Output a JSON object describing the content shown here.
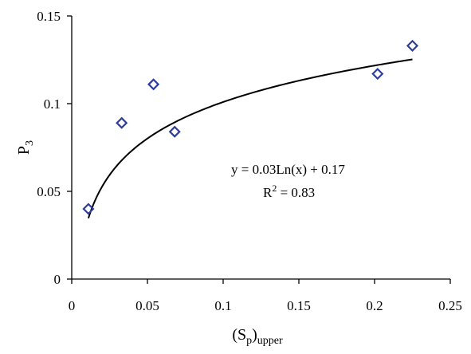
{
  "chart_data": {
    "type": "scatter",
    "xlabel": {
      "main": "(S",
      "sub1": "p",
      "mid": ")",
      "sub2": "upper"
    },
    "ylabel": {
      "main": "P",
      "sub": "3"
    },
    "xlim": [
      0,
      0.25
    ],
    "ylim": [
      0,
      0.15
    ],
    "x_ticks": [
      {
        "value": 0,
        "label": "0"
      },
      {
        "value": 0.05,
        "label": "0.05"
      },
      {
        "value": 0.1,
        "label": "0.1"
      },
      {
        "value": 0.15,
        "label": "0.15"
      },
      {
        "value": 0.2,
        "label": "0.2"
      },
      {
        "value": 0.25,
        "label": "0.25"
      }
    ],
    "y_ticks": [
      {
        "value": 0,
        "label": "0"
      },
      {
        "value": 0.05,
        "label": "0.05"
      },
      {
        "value": 0.1,
        "label": "0.1"
      },
      {
        "value": 0.15,
        "label": "0.15"
      }
    ],
    "grid": false,
    "legend": "none",
    "series": [
      {
        "marker": "diamond-open",
        "color": "#2E3D9A",
        "points": [
          {
            "x": 0.011,
            "y": 0.04
          },
          {
            "x": 0.033,
            "y": 0.089
          },
          {
            "x": 0.054,
            "y": 0.111
          },
          {
            "x": 0.068,
            "y": 0.084
          },
          {
            "x": 0.202,
            "y": 0.117
          },
          {
            "x": 0.225,
            "y": 0.133
          }
        ]
      }
    ],
    "trendline": {
      "kind": "logarithmic",
      "a": 0.03,
      "b": 0.17,
      "x_range": [
        0.011,
        0.225
      ],
      "color": "#000000",
      "equation_label": "y = 0.03Ln(x) + 0.17",
      "r2_label": {
        "main": "R",
        "sup": "2",
        "rest": " = 0.83"
      }
    }
  }
}
